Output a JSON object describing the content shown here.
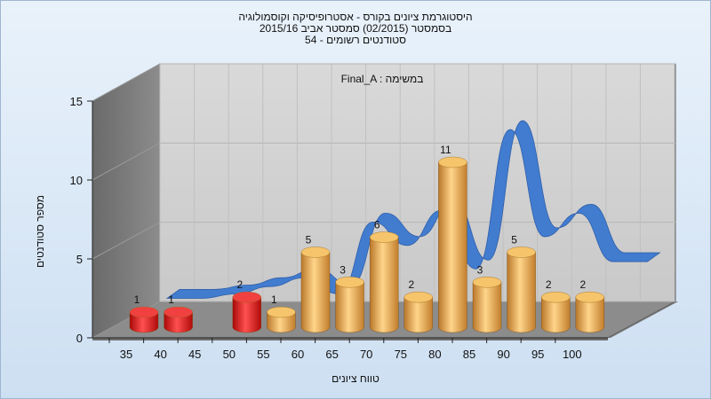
{
  "titles": {
    "line1": "היסטוגרמת ציונים בקורס - אסטרופיסיקה וקוסמולוגיה",
    "line2": "בסמסטר  (02/2015)  סמסטר אביב 2015/16",
    "line3": "סטודנטים רשומים - 54"
  },
  "colors": {
    "fail": "#e01818",
    "pass": "#f0b050",
    "curve": "#3a78d0",
    "curve_low": "#777777",
    "wall": "#7d7d7d",
    "floor": "#8a8a8a",
    "back": "#d3d3d3"
  },
  "chart_data": {
    "type": "bar",
    "title": "היסטוגרמת ציונים בקורס - אסטרופיסיקה וקוסמולוגיה",
    "xlabel": "טווח ציונים",
    "ylabel": "מספר סטודנטים",
    "legend": "Final_A : במשימה",
    "ylim": [
      0,
      15
    ],
    "yticks": [
      "0",
      "5",
      "10",
      "15"
    ],
    "categories": [
      "35",
      "40",
      "45",
      "50",
      "55",
      "60",
      "65",
      "70",
      "75",
      "80",
      "85",
      "90",
      "95",
      "100"
    ],
    "values": [
      1,
      1,
      0,
      2,
      1,
      5,
      3,
      6,
      2,
      11,
      3,
      5,
      2,
      2
    ],
    "value_labels": [
      "1",
      "1",
      "",
      "2",
      "1",
      "5",
      "3",
      "6",
      "2",
      "11",
      "3",
      "5",
      "2",
      "2"
    ],
    "bar_status": [
      "fail",
      "fail",
      "fail",
      "fail",
      "pass",
      "pass",
      "pass",
      "pass",
      "pass",
      "pass",
      "pass",
      "pass",
      "pass",
      "pass"
    ],
    "curve_values": [
      1,
      1,
      1.3,
      1.8,
      2.4,
      1.3,
      6.2,
      4.6,
      7.0,
      3.0,
      12.5,
      5.2,
      6.8,
      3.5,
      3.5
    ],
    "grid": true
  }
}
